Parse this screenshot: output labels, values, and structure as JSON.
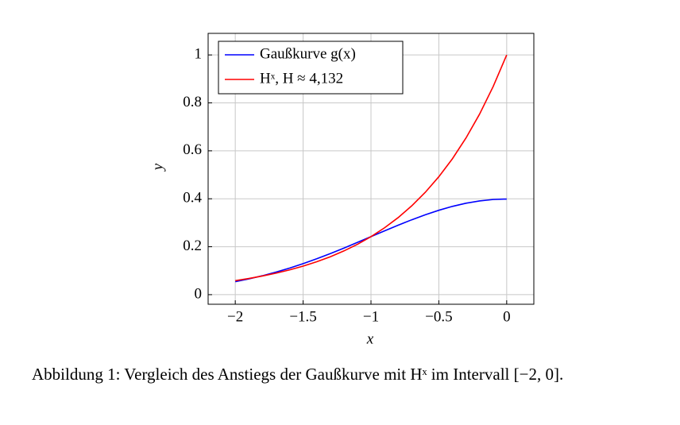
{
  "chart_data": {
    "type": "line",
    "x": [
      -2,
      -1.9,
      -1.8,
      -1.7,
      -1.6,
      -1.5,
      -1.4,
      -1.3,
      -1.2,
      -1.1,
      -1,
      -0.9,
      -0.8,
      -0.7,
      -0.6,
      -0.5,
      -0.4,
      -0.3,
      -0.2,
      -0.1,
      0
    ],
    "series": [
      {
        "name": "Gaußkurve g(x)",
        "color": "#0000ff",
        "values": [
          0.054,
          0.0656,
          0.079,
          0.094,
          0.1109,
          0.1295,
          0.1497,
          0.1714,
          0.1942,
          0.2179,
          0.242,
          0.2661,
          0.2897,
          0.3123,
          0.3332,
          0.3521,
          0.3683,
          0.3814,
          0.391,
          0.397,
          0.3989
        ]
      },
      {
        "name": "Hˣ, H ≈ 4,132",
        "color": "#ff0000",
        "values": [
          0.0586,
          0.0675,
          0.0778,
          0.0897,
          0.1033,
          0.1191,
          0.1372,
          0.1581,
          0.1823,
          0.21,
          0.242,
          0.2789,
          0.3214,
          0.3704,
          0.4269,
          0.492,
          0.5669,
          0.6534,
          0.753,
          0.8677,
          1
        ]
      }
    ],
    "xlabel": "x",
    "ylabel": "y",
    "xlim": [
      -2.2,
      0.2
    ],
    "ylim": [
      -0.04,
      1.09
    ],
    "xticks": [
      {
        "value": -2,
        "label": "−2"
      },
      {
        "value": -1.5,
        "label": "−1.5"
      },
      {
        "value": -1,
        "label": "−1"
      },
      {
        "value": -0.5,
        "label": "−0.5"
      },
      0
    ],
    "yticks": [
      0,
      0.2,
      0.4,
      0.6,
      0.8,
      1
    ],
    "grid": true,
    "legend": "top-left",
    "caption": "Abbildung 1: Vergleich des Anstiegs der Gaußkurve mit Hˣ im Intervall [−2, 0]."
  }
}
